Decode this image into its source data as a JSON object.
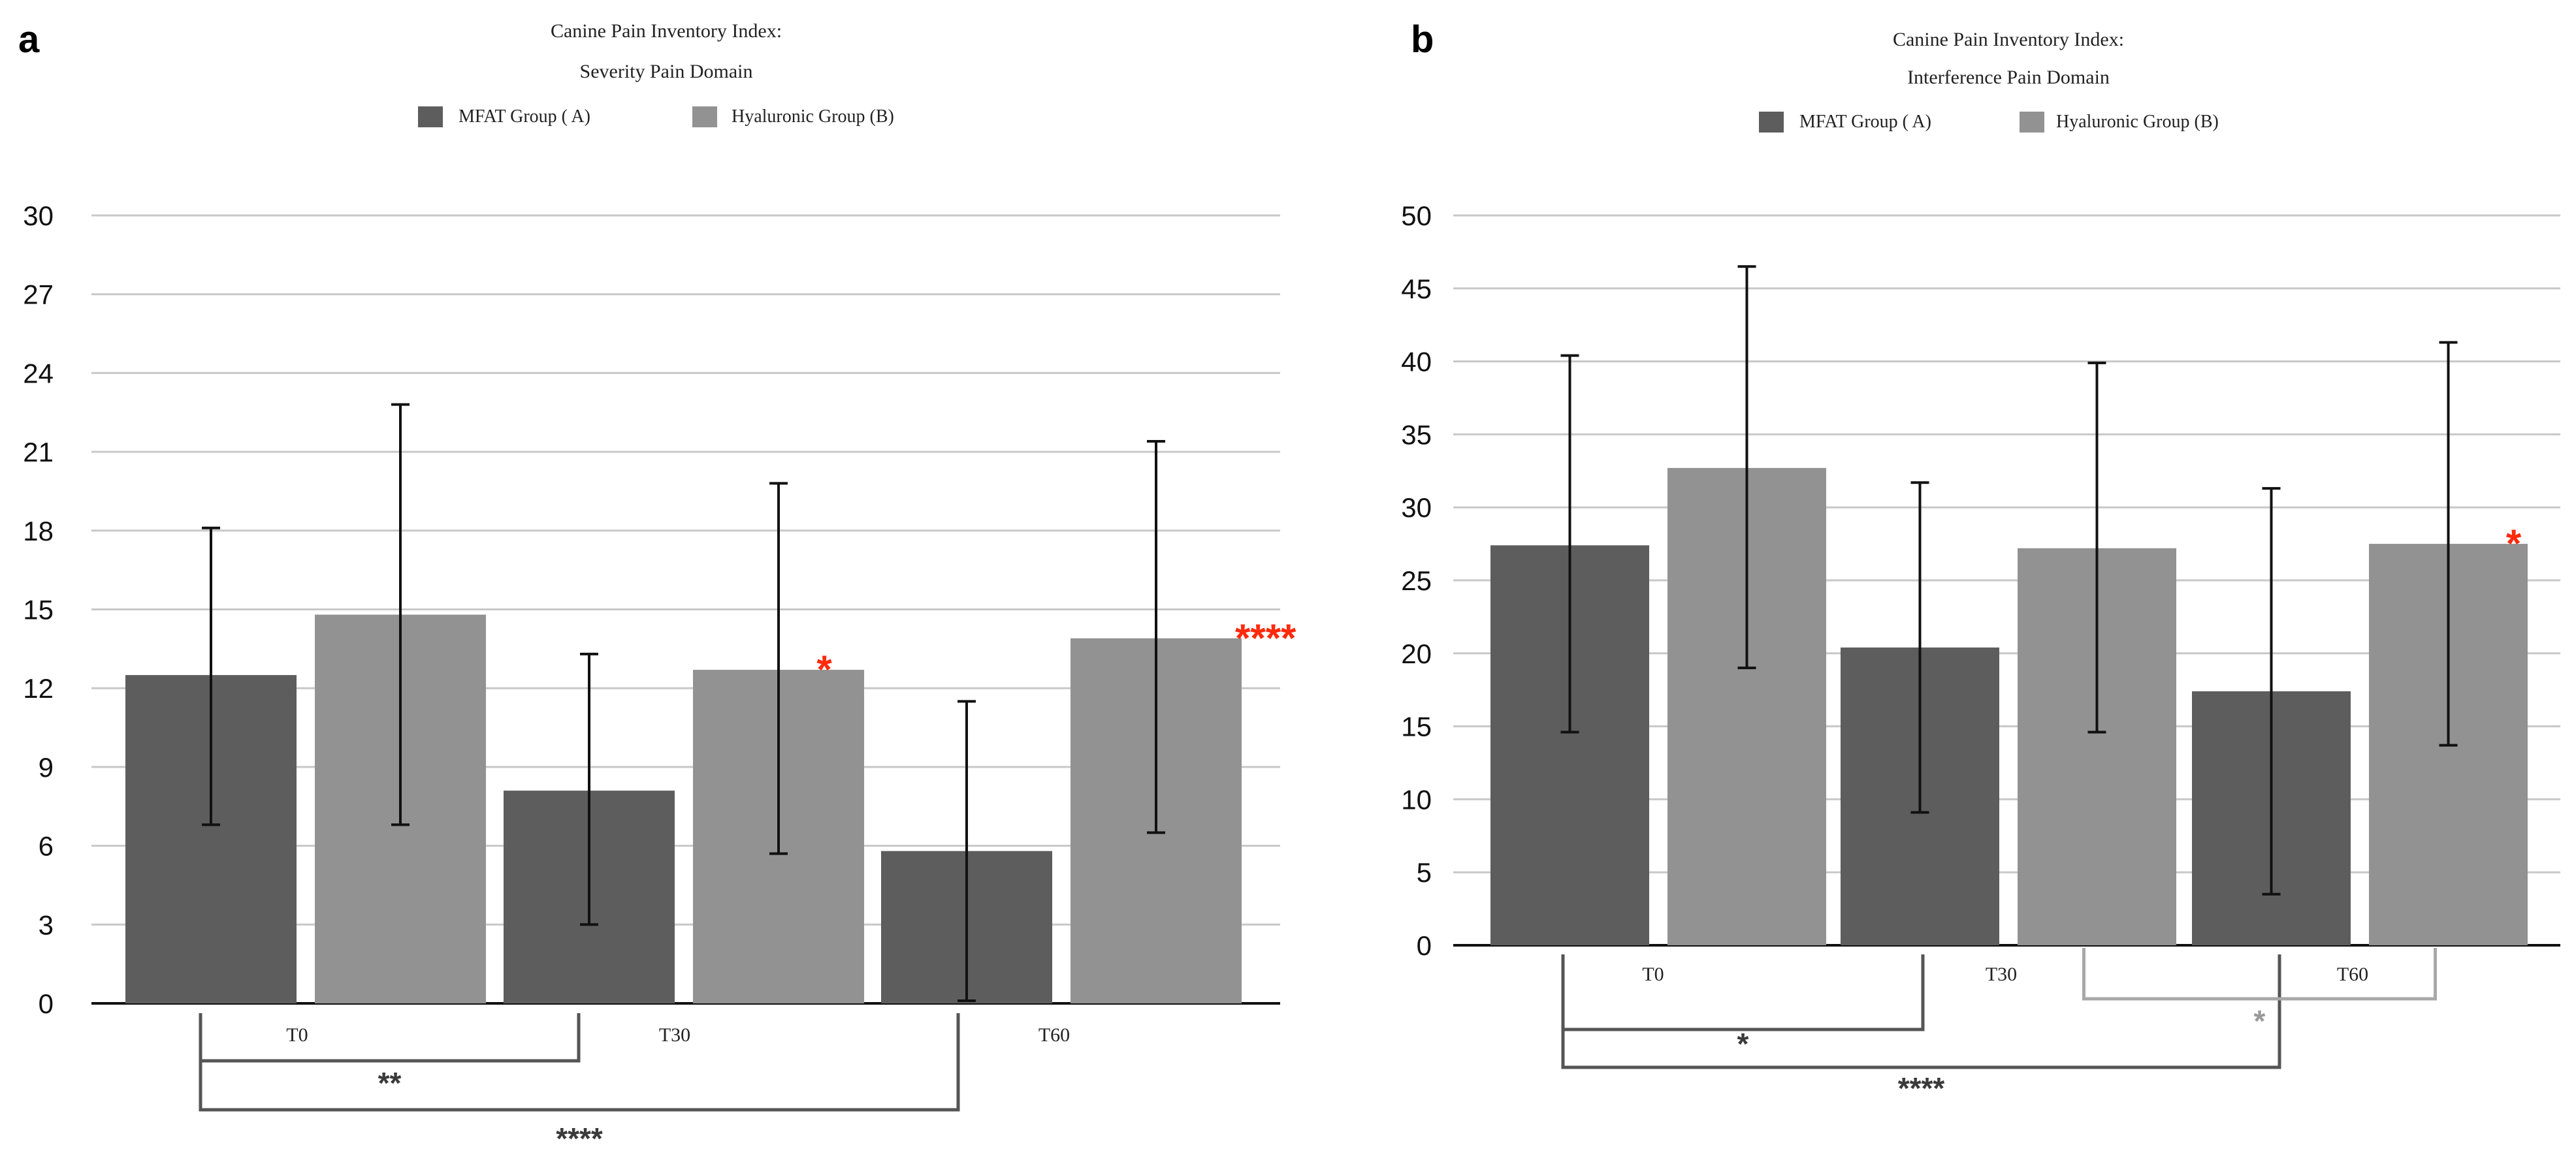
{
  "panel_labels": [
    "a",
    "b"
  ],
  "colors": {
    "series_a": "#5d5d5d",
    "series_b": "#929292",
    "grid": "#c8c8c8",
    "bracket_dark": "#555555",
    "bracket_light": "#a8a8a8",
    "significance_red": "#ff2a0d"
  },
  "chart_data": [
    {
      "type": "bar",
      "panel": "a",
      "title": "Canine Pain Inventory Index:",
      "subtitle": "Severity Pain Domain",
      "categories": [
        "T0",
        "T30",
        "T60"
      ],
      "legend": [
        "MFAT Group ( A)",
        "Hyaluronic Group (B)"
      ],
      "series": [
        {
          "name": "MFAT Group ( A)",
          "values": [
            12.5,
            8.1,
            5.8
          ],
          "err_low": [
            6.8,
            3.0,
            0.1
          ],
          "err_high": [
            18.1,
            13.3,
            11.5
          ]
        },
        {
          "name": "Hyaluronic Group (B)",
          "values": [
            14.8,
            12.7,
            13.9
          ],
          "err_low": [
            6.8,
            5.7,
            6.5
          ],
          "err_high": [
            22.8,
            19.8,
            21.4
          ]
        }
      ],
      "yticks": [
        "0",
        "3",
        "6",
        "9",
        "12",
        "15",
        "18",
        "21",
        "24",
        "27",
        "30"
      ],
      "ylim": [
        0,
        30
      ],
      "grid": true,
      "red_markers": [
        {
          "series": 1,
          "category": 1,
          "text": "*"
        },
        {
          "series": 1,
          "category": 2,
          "text": "****"
        }
      ],
      "brackets": [
        {
          "from": 0,
          "to": 1,
          "label": "**",
          "tone": "dark"
        },
        {
          "from": 0,
          "to": 2,
          "label": "****",
          "tone": "dark"
        }
      ]
    },
    {
      "type": "bar",
      "panel": "b",
      "title": "Canine Pain Inventory Index:",
      "subtitle": "Interference Pain Domain",
      "categories": [
        "T0",
        "T30",
        "T60"
      ],
      "legend": [
        "MFAT Group ( A)",
        "Hyaluronic Group (B)"
      ],
      "series": [
        {
          "name": "MFAT Group ( A)",
          "values": [
            27.4,
            20.4,
            17.4
          ],
          "err_low": [
            14.6,
            9.1,
            3.5
          ],
          "err_high": [
            40.4,
            31.7,
            31.3
          ]
        },
        {
          "name": "Hyaluronic Group (B)",
          "values": [
            32.7,
            27.2,
            27.5
          ],
          "err_low": [
            19.0,
            14.6,
            13.7
          ],
          "err_high": [
            46.5,
            39.9,
            41.3
          ]
        }
      ],
      "yticks": [
        "0",
        "5",
        "10",
        "15",
        "20",
        "25",
        "30",
        "35",
        "40",
        "45",
        "50"
      ],
      "ylim": [
        0,
        50
      ],
      "grid": true,
      "red_markers": [
        {
          "series": 1,
          "category": 2,
          "text": "*"
        }
      ],
      "brackets": [
        {
          "from": 0,
          "to": 1,
          "label": "*",
          "tone": "dark"
        },
        {
          "from": 0,
          "to": 2,
          "label": "****",
          "tone": "dark"
        },
        {
          "from": 1,
          "to": 2,
          "label": "*",
          "tone": "light",
          "series": 1
        }
      ]
    }
  ]
}
